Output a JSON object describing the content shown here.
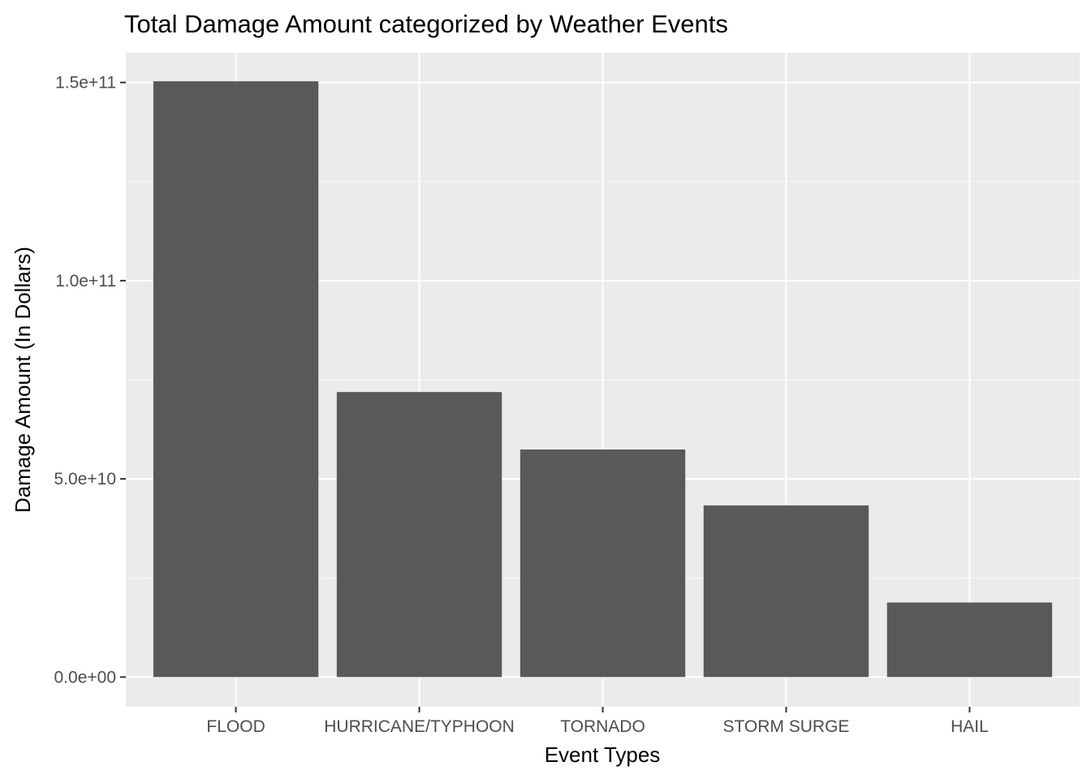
{
  "chart_data": {
    "type": "bar",
    "title": "Total Damage Amount categorized by Weather Events",
    "xlabel": "Event Types",
    "ylabel": "Damage Amount (In Dollars)",
    "categories": [
      "FLOOD",
      "HURRICANE/TYPHOON",
      "TORNADO",
      "STORM SURGE",
      "HAIL"
    ],
    "values": [
      150300000000,
      71900000000,
      57400000000,
      43300000000,
      18800000000
    ],
    "ylim": [
      -7500000000,
      157500000000
    ],
    "yticks": [
      0,
      50000000000,
      100000000000,
      150000000000
    ],
    "ytick_labels": [
      "0.0e+00",
      "5.0e+10",
      "1.0e+11",
      "1.5e+11"
    ],
    "grid": true,
    "legend": "none",
    "colors": {
      "bar": "#595959",
      "panel": "#ebebeb",
      "grid_major": "#ffffff",
      "grid_minor": "#f6f6f6",
      "tick_text": "#4d4d4d"
    }
  }
}
